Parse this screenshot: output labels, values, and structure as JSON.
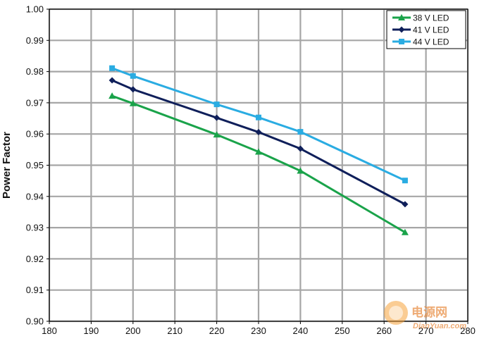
{
  "chart_data": {
    "type": "line",
    "ylabel": "Power Factor",
    "xlim": [
      180,
      280
    ],
    "ylim": [
      0.9,
      1.0
    ],
    "x_ticks": [
      "180",
      "190",
      "200",
      "210",
      "220",
      "230",
      "240",
      "250",
      "260",
      "270",
      "280"
    ],
    "y_ticks": [
      "0.90",
      "0.91",
      "0.92",
      "0.93",
      "0.94",
      "0.95",
      "0.96",
      "0.97",
      "0.98",
      "0.99",
      "1.00"
    ],
    "grid": true,
    "legend_position": "top-right",
    "series": [
      {
        "name": "38 V LED",
        "color": "#1aa34a",
        "marker": "triangle",
        "x": [
          195,
          200,
          220,
          230,
          240,
          265
        ],
        "y": [
          0.9722,
          0.9698,
          0.9598,
          0.9543,
          0.9482,
          0.9285
        ]
      },
      {
        "name": "41 V LED",
        "color": "#0f1f5a",
        "marker": "diamond",
        "x": [
          195,
          200,
          220,
          230,
          240,
          265
        ],
        "y": [
          0.9772,
          0.9743,
          0.9652,
          0.9606,
          0.9553,
          0.9375
        ]
      },
      {
        "name": "44 V LED",
        "color": "#2aace2",
        "marker": "square",
        "x": [
          195,
          200,
          220,
          230,
          240,
          265
        ],
        "y": [
          0.9811,
          0.9786,
          0.9695,
          0.9653,
          0.9607,
          0.9451
        ]
      }
    ]
  },
  "watermark": {
    "brand": "电源网",
    "url": "DianYuan.com"
  }
}
